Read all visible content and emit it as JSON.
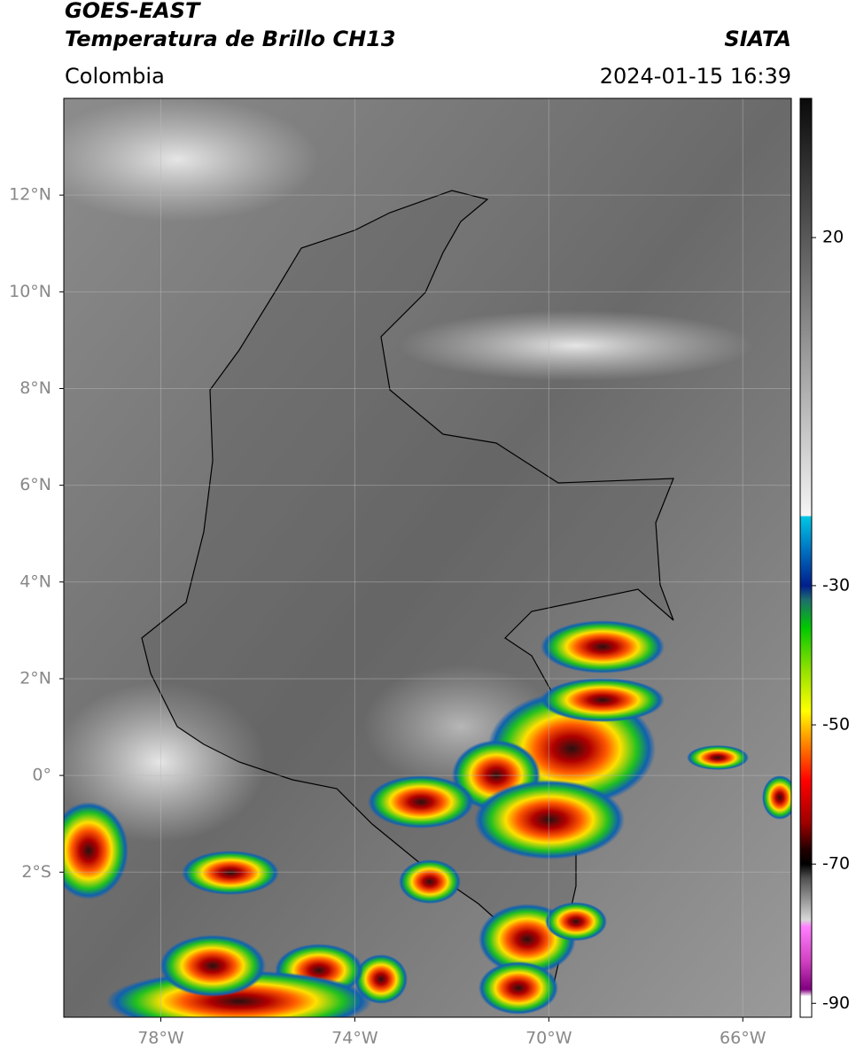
{
  "header": {
    "title": "GOES-EAST",
    "subtitle": "Temperatura de Brillo CH13",
    "source": "SIATA",
    "region": "Colombia",
    "datetime": "2024-01-15 16:39"
  },
  "map": {
    "xlim": [
      -80,
      -65
    ],
    "ylim": [
      -5,
      14
    ],
    "xticks": [
      {
        "value": -78,
        "label": "78°W"
      },
      {
        "value": -74,
        "label": "74°W"
      },
      {
        "value": -70,
        "label": "70°W"
      },
      {
        "value": -66,
        "label": "66°W"
      }
    ],
    "yticks": [
      {
        "value": 12,
        "label": "12°N"
      },
      {
        "value": 10,
        "label": "10°N"
      },
      {
        "value": 8,
        "label": "8°N"
      },
      {
        "value": 6,
        "label": "6°N"
      },
      {
        "value": 4,
        "label": "4°N"
      },
      {
        "value": 2,
        "label": "2°N"
      },
      {
        "value": 0,
        "label": "0°"
      },
      {
        "value": -2,
        "label": "2°S"
      }
    ],
    "grid": true
  },
  "colorbar": {
    "lim": [
      -92,
      40
    ],
    "ticks": [
      20,
      -30,
      -50,
      -70,
      -90
    ],
    "stops": [
      {
        "value": 40,
        "color": "#0a0a0a"
      },
      {
        "value": -20,
        "color": "#f5f5f5"
      },
      {
        "value": -20,
        "color": "#00c8e6"
      },
      {
        "value": -25,
        "color": "#0070c0"
      },
      {
        "value": -30,
        "color": "#001e8c"
      },
      {
        "value": -32,
        "color": "#1e6e6e"
      },
      {
        "value": -36,
        "color": "#00c800"
      },
      {
        "value": -42,
        "color": "#90e000"
      },
      {
        "value": -48,
        "color": "#ffff00"
      },
      {
        "value": -52,
        "color": "#ff9600"
      },
      {
        "value": -58,
        "color": "#ff0000"
      },
      {
        "value": -64,
        "color": "#a00000"
      },
      {
        "value": -68,
        "color": "#200000"
      },
      {
        "value": -70,
        "color": "#000000"
      },
      {
        "value": -72,
        "color": "#505050"
      },
      {
        "value": -78,
        "color": "#d8d8d8"
      },
      {
        "value": -79,
        "color": "#ff80ff"
      },
      {
        "value": -84,
        "color": "#d040c0"
      },
      {
        "value": -88,
        "color": "#800080"
      },
      {
        "value": -89,
        "color": "#ffffff"
      },
      {
        "value": -92,
        "color": "#ffffff"
      }
    ]
  }
}
